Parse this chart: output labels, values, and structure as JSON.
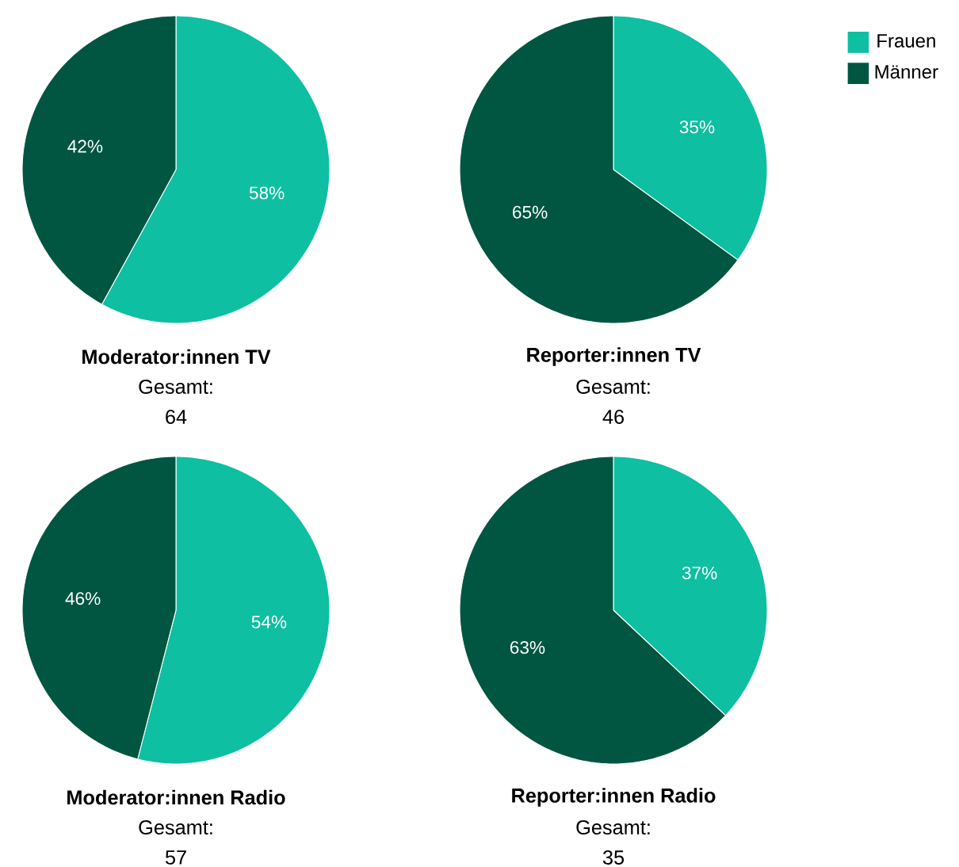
{
  "chart_data": [
    {
      "type": "pie",
      "title": "Moderator:innen TV",
      "subtitle": "Gesamt:",
      "annotations": [
        "64"
      ],
      "categories": [
        "Frauen",
        "Männer"
      ],
      "values": [
        58,
        42
      ],
      "value_labels": [
        "58%",
        "42%"
      ],
      "colors": [
        "#0ebfa1",
        "#005641"
      ],
      "legend": "top right"
    },
    {
      "type": "pie",
      "title": "Reporter:innen TV",
      "subtitle": "Gesamt:",
      "annotations": [
        "46"
      ],
      "categories": [
        null,
        null
      ],
      "values": [
        35,
        65
      ],
      "value_labels": [
        "35%",
        "65%"
      ],
      "colors": [
        "#0ebfa1",
        "#005641"
      ]
    },
    {
      "type": "pie",
      "title": "Moderator:innen Radio",
      "subtitle": "Gesamt:",
      "annotations": [
        "57"
      ],
      "categories": [
        null,
        null
      ],
      "values": [
        54,
        46
      ],
      "value_labels": [
        "54%",
        "46%"
      ],
      "colors": [
        "#0ebfa1",
        "#005641"
      ]
    },
    {
      "type": "pie",
      "title": "Reporter:innen Radio",
      "subtitle": "Gesamt:",
      "annotations": [
        "35"
      ],
      "categories": [
        null,
        null
      ],
      "values": [
        37,
        63
      ],
      "value_labels": [
        "37%",
        "63%"
      ],
      "colors": [
        "#0ebfa1",
        "#005641"
      ]
    }
  ]
}
